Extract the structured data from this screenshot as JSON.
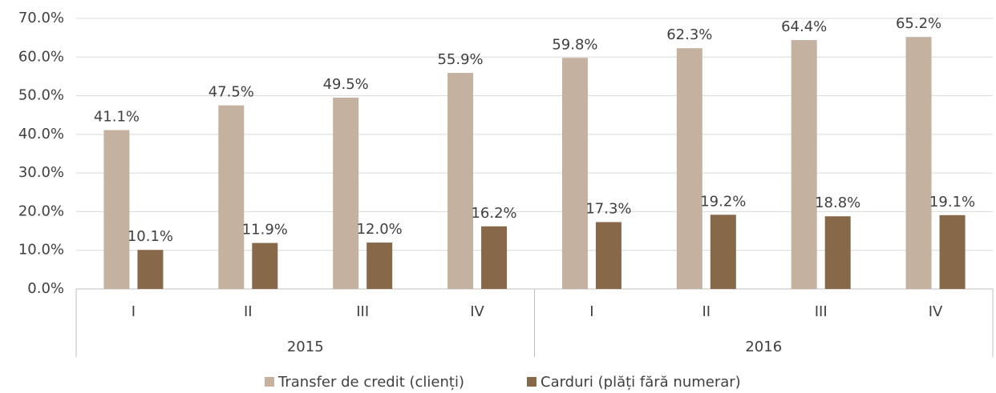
{
  "chart_data": {
    "type": "bar",
    "categories": [
      "I",
      "II",
      "III",
      "IV",
      "I",
      "II",
      "III",
      "IV"
    ],
    "groups": [
      "2015",
      "2016"
    ],
    "series": [
      {
        "name": "Transfer de credit (clienți)",
        "color": "#c5b19f",
        "values": [
          41.1,
          47.5,
          49.5,
          55.9,
          59.8,
          62.3,
          64.4,
          65.2
        ],
        "value_labels": [
          "41.1%",
          "47.5%",
          "49.5%",
          "55.9%",
          "59.8%",
          "62.3%",
          "64.4%",
          "65.2%"
        ]
      },
      {
        "name": "Carduri (plăți fără numerar)",
        "color": "#87694a",
        "values": [
          10.1,
          11.9,
          12.0,
          16.2,
          17.3,
          19.2,
          18.8,
          19.1
        ],
        "value_labels": [
          "10.1%",
          "11.9%",
          "12.0%",
          "16.2%",
          "17.3%",
          "19.2%",
          "18.8%",
          "19.1%"
        ]
      }
    ],
    "ylim": [
      0,
      70
    ],
    "yticks": [
      {
        "value": 0,
        "label": "0.0%"
      },
      {
        "value": 10,
        "label": "10.0%"
      },
      {
        "value": 20,
        "label": "20.0%"
      },
      {
        "value": 30,
        "label": "30.0%"
      },
      {
        "value": 40,
        "label": "40.0%"
      },
      {
        "value": 50,
        "label": "50.0%"
      },
      {
        "value": 60,
        "label": "60.0%"
      },
      {
        "value": 70,
        "label": "70.0%"
      }
    ],
    "grid": true,
    "legend": "bottom"
  }
}
